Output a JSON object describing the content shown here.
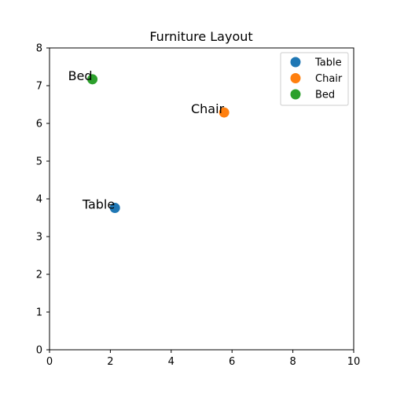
{
  "chart_data": {
    "type": "scatter",
    "title": "Furniture Layout",
    "xlabel": "",
    "ylabel": "",
    "xlim": [
      0,
      10
    ],
    "ylim": [
      0,
      8
    ],
    "xticks": [
      0,
      2,
      4,
      6,
      8,
      10
    ],
    "yticks": [
      0,
      1,
      2,
      3,
      4,
      5,
      6,
      7,
      8
    ],
    "grid": false,
    "legend_position": "top-right",
    "series": [
      {
        "name": "Table",
        "x": 2.15,
        "y": 3.76,
        "color": "#1f77b4"
      },
      {
        "name": "Chair",
        "x": 5.74,
        "y": 6.29,
        "color": "#ff7f0e"
      },
      {
        "name": "Bed",
        "x": 1.41,
        "y": 7.17,
        "color": "#2ca02c"
      }
    ],
    "annotations": [
      {
        "text": "Table",
        "x": 2.15,
        "y": 3.76
      },
      {
        "text": "Chair",
        "x": 5.74,
        "y": 6.29
      },
      {
        "text": "Bed",
        "x": 1.41,
        "y": 7.17
      }
    ]
  }
}
